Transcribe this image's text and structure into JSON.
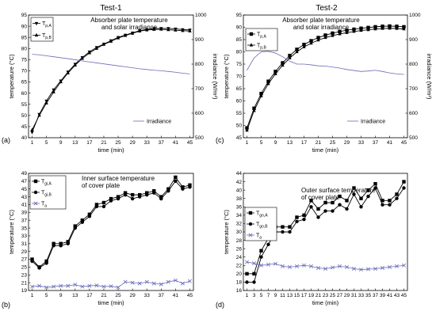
{
  "figure": {
    "titles": [
      "Test-1",
      "Test-2"
    ]
  },
  "chart_data": [
    {
      "type": "line",
      "panel_label": "(a)",
      "title": "Absorber plate temperature\nand solar irradiance",
      "xlabel": "time (min)",
      "ylabel": "temperature (°C)",
      "y2label": "irradiance (W/m²)",
      "xlim": [
        0,
        46
      ],
      "ylim": [
        40,
        95
      ],
      "y2lim": [
        500,
        1000
      ],
      "xticks": [
        1,
        5,
        9,
        13,
        17,
        21,
        25,
        29,
        33,
        37,
        41,
        45
      ],
      "yticks": [
        40,
        45,
        50,
        55,
        60,
        65,
        70,
        75,
        80,
        85,
        90,
        95
      ],
      "y2ticks": [
        500,
        600,
        700,
        800,
        900,
        1000
      ],
      "x": [
        1,
        3,
        5,
        7,
        9,
        11,
        13,
        15,
        17,
        19,
        21,
        23,
        25,
        27,
        29,
        31,
        33,
        35,
        37,
        39,
        41,
        43,
        45
      ],
      "series": [
        {
          "name": "T_p,A",
          "marker": "triangle-down",
          "values": [
            42.5,
            50.5,
            56.5,
            61.5,
            65.5,
            69.5,
            73,
            76,
            78.5,
            80.5,
            82,
            83.5,
            85,
            86,
            87,
            88,
            88.5,
            89,
            89,
            89,
            88.8,
            88.5,
            88.3
          ]
        },
        {
          "name": "T_p,B",
          "marker": "triangle-up",
          "values": [
            43.5,
            50,
            55.5,
            60.5,
            65,
            69,
            72.5,
            75.5,
            78,
            80,
            81.8,
            83.2,
            84.7,
            85.8,
            86.8,
            87.8,
            88.3,
            88.5,
            88.6,
            88.4,
            88.2,
            88,
            87.8
          ]
        },
        {
          "name": "Irradiance",
          "axis": "right",
          "values": [
            840,
            838,
            834,
            830,
            826,
            822,
            818,
            813,
            809,
            805,
            801,
            797,
            793,
            789,
            785,
            781,
            778,
            775,
            773,
            770,
            767,
            763,
            760
          ]
        }
      ],
      "legend": [
        "T_p,A",
        "T_p,B",
        "Irradiance"
      ]
    },
    {
      "type": "line",
      "panel_label": "(c)",
      "title": "Absorber plate temperature\nand solar irradiance",
      "xlabel": "time (min)",
      "ylabel": "temperature (°C)",
      "y2label": "irradiance (W/m²)",
      "xlim": [
        0,
        46
      ],
      "ylim": [
        45,
        95
      ],
      "y2lim": [
        500,
        1000
      ],
      "xticks": [
        1,
        5,
        9,
        13,
        17,
        21,
        25,
        29,
        33,
        37,
        41,
        45
      ],
      "yticks": [
        45,
        50,
        55,
        60,
        65,
        70,
        75,
        80,
        85,
        90,
        95
      ],
      "y2ticks": [
        500,
        600,
        700,
        800,
        900,
        1000
      ],
      "x": [
        1,
        3,
        5,
        7,
        9,
        11,
        13,
        15,
        17,
        19,
        21,
        23,
        25,
        27,
        29,
        31,
        33,
        35,
        37,
        39,
        41,
        43,
        45
      ],
      "series": [
        {
          "name": "T_p,A",
          "marker": "square",
          "values": [
            49,
            57,
            63,
            68,
            72,
            75.5,
            78.5,
            81,
            83,
            84.5,
            85.8,
            86.8,
            87.6,
            88.3,
            88.8,
            89.2,
            89.6,
            89.9,
            90.2,
            90.4,
            90.5,
            90.4,
            90.2
          ]
        },
        {
          "name": "T_p,B",
          "marker": "triangle-up",
          "values": [
            48,
            56,
            62,
            67,
            71,
            74.5,
            77.5,
            80,
            82,
            83.5,
            84.8,
            85.8,
            86.6,
            87.3,
            87.8,
            88.3,
            88.7,
            89,
            89.3,
            89.5,
            89.6,
            89.5,
            89.3
          ]
        },
        {
          "name": "Irradiance",
          "axis": "right",
          "values": [
            775,
            825,
            850,
            852,
            845,
            830,
            812,
            800,
            800,
            797,
            793,
            792,
            788,
            784,
            778,
            774,
            770,
            772,
            775,
            770,
            764,
            760,
            758
          ]
        }
      ],
      "legend": [
        "T_p,A",
        "T_p,B",
        "Irradiance"
      ]
    },
    {
      "type": "line",
      "panel_label": "(b)",
      "title": "Inner surface temperature\nof cover plate",
      "xlabel": "time (min)",
      "ylabel": "temperature (°C)",
      "xlim": [
        0,
        46
      ],
      "ylim": [
        19,
        49
      ],
      "xticks": [
        1,
        5,
        9,
        13,
        17,
        21,
        25,
        29,
        33,
        37,
        41,
        45
      ],
      "yticks": [
        19,
        21,
        23,
        25,
        27,
        29,
        31,
        33,
        35,
        37,
        39,
        41,
        43,
        45,
        47,
        49
      ],
      "x": [
        1,
        3,
        5,
        7,
        9,
        11,
        13,
        15,
        17,
        19,
        21,
        23,
        25,
        27,
        29,
        31,
        33,
        35,
        37,
        39,
        41,
        43,
        45
      ],
      "series": [
        {
          "name": "T_gi,A",
          "marker": "square",
          "values": [
            27,
            25,
            26.5,
            31,
            31,
            31.5,
            35.5,
            37,
            38.5,
            41,
            41.5,
            42.5,
            43,
            44,
            43.5,
            43.5,
            44,
            44.5,
            43,
            45,
            48,
            45.5,
            46
          ]
        },
        {
          "name": "T_gi,B",
          "marker": "circle",
          "values": [
            26.5,
            24.8,
            26,
            30.5,
            30.5,
            31,
            35,
            36.5,
            38,
            40.5,
            40.5,
            42,
            42.5,
            43.5,
            42.5,
            43,
            43.5,
            44,
            42.5,
            44.5,
            47,
            45,
            45.5
          ]
        },
        {
          "name": "T_a",
          "marker": "x",
          "values": [
            20,
            20.2,
            19.8,
            20,
            20.2,
            20.2,
            20.5,
            20,
            20.2,
            20.3,
            20,
            20.1,
            19.8,
            21.2,
            21,
            20.8,
            21.2,
            20.8,
            20.6,
            21.2,
            21.6,
            20.8,
            21.4
          ]
        }
      ],
      "legend": [
        "T_gi,A",
        "T_gi,B",
        "T_a"
      ]
    },
    {
      "type": "line",
      "panel_label": "(d)",
      "title": "Outer surface temperature\nof cover plate",
      "xlabel": "time (min)",
      "ylabel": "temperature (°C)",
      "xlim": [
        0,
        46
      ],
      "ylim": [
        16,
        44
      ],
      "xticks": [
        1,
        3,
        5,
        7,
        9,
        11,
        13,
        15,
        17,
        19,
        21,
        23,
        25,
        27,
        29,
        31,
        33,
        35,
        37,
        39,
        41,
        43,
        45
      ],
      "yticks": [
        16,
        18,
        20,
        22,
        24,
        26,
        28,
        30,
        32,
        34,
        36,
        38,
        40,
        42,
        44
      ],
      "x": [
        1,
        3,
        5,
        7,
        9,
        11,
        13,
        15,
        17,
        19,
        21,
        23,
        25,
        27,
        29,
        31,
        33,
        35,
        37,
        39,
        41,
        43,
        45
      ],
      "series": [
        {
          "name": "T_go,A",
          "marker": "square",
          "values": [
            20,
            20,
            25.5,
            28.5,
            31.2,
            31.2,
            31.2,
            33.5,
            34,
            37.5,
            35.5,
            37,
            37,
            38.5,
            37.5,
            40.5,
            38,
            40,
            41.5,
            37.5,
            37.5,
            39,
            42
          ]
        },
        {
          "name": "T_go,B",
          "marker": "circle",
          "values": [
            18,
            18,
            24,
            27,
            30,
            30,
            30,
            32.5,
            33,
            36,
            33.5,
            35,
            35,
            36.5,
            35.5,
            39,
            36,
            38.5,
            40.5,
            36.5,
            36.5,
            38,
            40.5
          ]
        },
        {
          "name": "T_a",
          "marker": "x",
          "values": [
            22.8,
            22.5,
            22,
            22.2,
            22.4,
            21.8,
            21.6,
            21.8,
            22,
            21.8,
            21.4,
            21.2,
            21.5,
            21.8,
            21.6,
            21.2,
            21,
            21.1,
            21.2,
            21.4,
            21.6,
            21.8,
            22
          ]
        }
      ],
      "legend": [
        "T_go,A",
        "T_go,B",
        "T_a"
      ]
    }
  ]
}
